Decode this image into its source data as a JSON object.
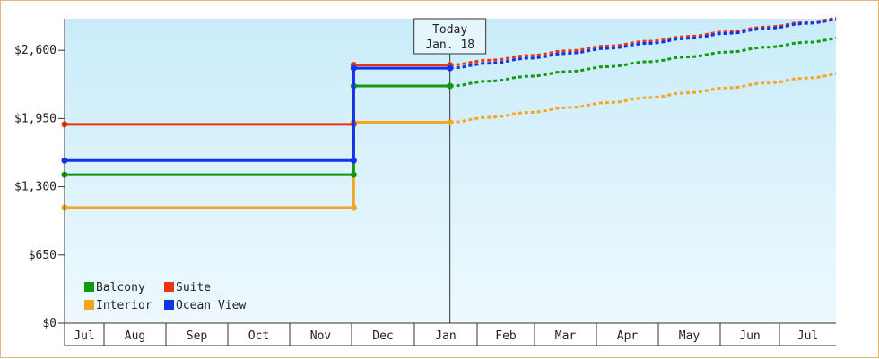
{
  "chart_data": {
    "type": "line",
    "y_ticks": [
      {
        "label": "$0",
        "value": 0
      },
      {
        "label": "$650",
        "value": 650
      },
      {
        "label": "$1,300",
        "value": 1300
      },
      {
        "label": "$1,950",
        "value": 1950
      },
      {
        "label": "$2,600",
        "value": 2600
      }
    ],
    "ylim": [
      0,
      2900
    ],
    "x_ticks": [
      "Jul",
      "Aug",
      "Sep",
      "Oct",
      "Nov",
      "Dec",
      "Jan",
      "Feb",
      "Mar",
      "Apr",
      "May",
      "Jun",
      "Jul"
    ],
    "today": {
      "line1": "Today",
      "line2": "Jan. 18"
    },
    "legend": {
      "placement": "bottom-left"
    },
    "series": [
      {
        "name": "Balcony",
        "color": "#119911",
        "history": [
          {
            "x": "Jul 1",
            "y": 1415
          },
          {
            "x": "Dec 2",
            "y": 1415
          },
          {
            "x": "Dec 2",
            "y": 2260
          },
          {
            "x": "Jan 18",
            "y": 2260
          }
        ],
        "forecast": [
          {
            "x": "Jan 18",
            "y": 2260
          },
          {
            "x": "Jul 31",
            "y": 2710
          }
        ]
      },
      {
        "name": "Suite",
        "color": "#ee3311",
        "history": [
          {
            "x": "Jul 1",
            "y": 1895
          },
          {
            "x": "Dec 2",
            "y": 1895
          },
          {
            "x": "Dec 2",
            "y": 2460
          },
          {
            "x": "Jan 18",
            "y": 2460
          }
        ],
        "forecast": [
          {
            "x": "Jan 18",
            "y": 2460
          },
          {
            "x": "Jul 31",
            "y": 2900
          }
        ]
      },
      {
        "name": "Interior",
        "color": "#f4a522",
        "history": [
          {
            "x": "Jul 1",
            "y": 1100
          },
          {
            "x": "Dec 2",
            "y": 1100
          },
          {
            "x": "Dec 2",
            "y": 1915
          },
          {
            "x": "Jan 18",
            "y": 1915
          }
        ],
        "forecast": [
          {
            "x": "Jan 18",
            "y": 1915
          },
          {
            "x": "Jul 31",
            "y": 2370
          }
        ]
      },
      {
        "name": "Ocean View",
        "color": "#1133ee",
        "history": [
          {
            "x": "Jul 1",
            "y": 1550
          },
          {
            "x": "Dec 2",
            "y": 1550
          },
          {
            "x": "Dec 2",
            "y": 2430
          },
          {
            "x": "Jan 18",
            "y": 2430
          }
        ],
        "forecast": [
          {
            "x": "Jan 18",
            "y": 2430
          },
          {
            "x": "Jul 31",
            "y": 2890
          }
        ]
      }
    ]
  }
}
